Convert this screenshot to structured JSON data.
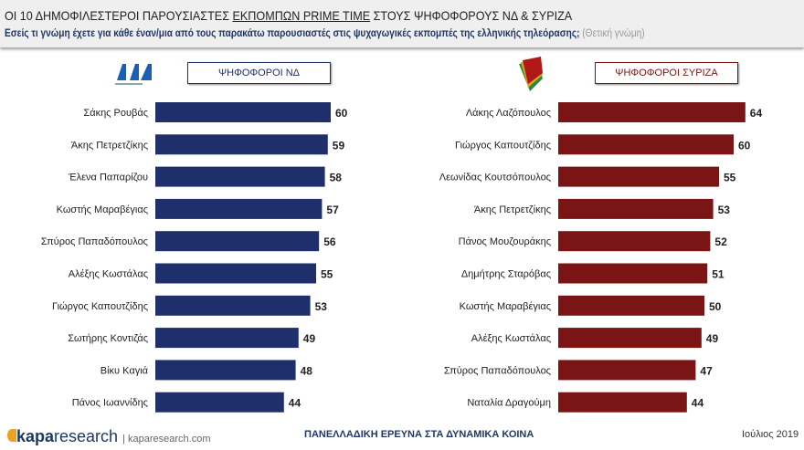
{
  "header": {
    "title_pre": "ΟΙ 10 ΔΗΜΟΦΙΛΕΣΤΕΡΟΙ ΠΑΡΟΥΣΙΑΣΤΕΣ ",
    "title_underlined": "ΕΚΠΟΜΠΩΝ PRIME TIME",
    "title_post": " ΣΤΟΥΣ ΨΗΦΟΦΟΡΟΥΣ ΝΔ & ΣΥΡΙΖΑ",
    "subtitle": "Εσείς τι γνώμη έχετε για κάθε έναν/μια από τους παρακάτω παρουσιαστές στις ψυχαγωγικές εκπομπές της ελληνικής τηλεόρασης;",
    "subtitle_note": "(Θετική γνώμη)"
  },
  "logos": {
    "nd": "ΝΔ ΝΕΑ ΔΗΜΟΚΡΑΤΙΑ",
    "syriza": "ΣΥΡΙΖΑ"
  },
  "chart_data": [
    {
      "type": "bar",
      "orientation": "horizontal",
      "title": "ΨΗΦΟΦΟΡΟΙ ΝΔ",
      "color": "#1f2f6b",
      "categories": [
        "Σάκης Ρουβάς",
        "Άκης Πετρετζίκης",
        "Έλενα Παπαρίζου",
        "Κωστής Μαραβέγιας",
        "Σπύρος Παπαδόπουλος",
        "Αλέξης Κωστάλας",
        "Γιώργος Καπουτζίδης",
        "Σωτήρης Κοντιζάς",
        "Βίκυ Καγιά",
        "Πάνος Ιωαννίδης"
      ],
      "values": [
        60,
        59,
        58,
        57,
        56,
        55,
        53,
        49,
        48,
        44
      ]
    },
    {
      "type": "bar",
      "orientation": "horizontal",
      "title": "ΨΗΦΟΦΟΡΟΙ ΣΥΡΙΖΑ",
      "color": "#7b1414",
      "categories": [
        "Λάκης Λαζόπουλος",
        "Γιώργος Καπουτζίδης",
        "Λεωνίδας Κουτσόπουλος",
        "Άκης Πετρετζίκης",
        "Πάνος Μουζουράκης",
        "Δημήτρης Σταρόβας",
        "Κωστής Μαραβέγιας",
        "Αλέξης Κωστάλας",
        "Σπύρος Παπαδόπουλος",
        "Ναταλία Δραγούμη"
      ],
      "values": [
        64,
        60,
        55,
        53,
        52,
        51,
        50,
        49,
        47,
        44
      ]
    }
  ],
  "footer": {
    "brand": "kapa",
    "brand2": "research",
    "site": "kaparesearch.com",
    "survey": "ΠΑΝΕΛΛΑΔΙΚΗ ΕΡΕΥΝΑ ΣΤΑ ΔΥΝΑΜΙΚΑ ΚΟΙΝΑ",
    "date": "Ιούλιος 2019"
  }
}
